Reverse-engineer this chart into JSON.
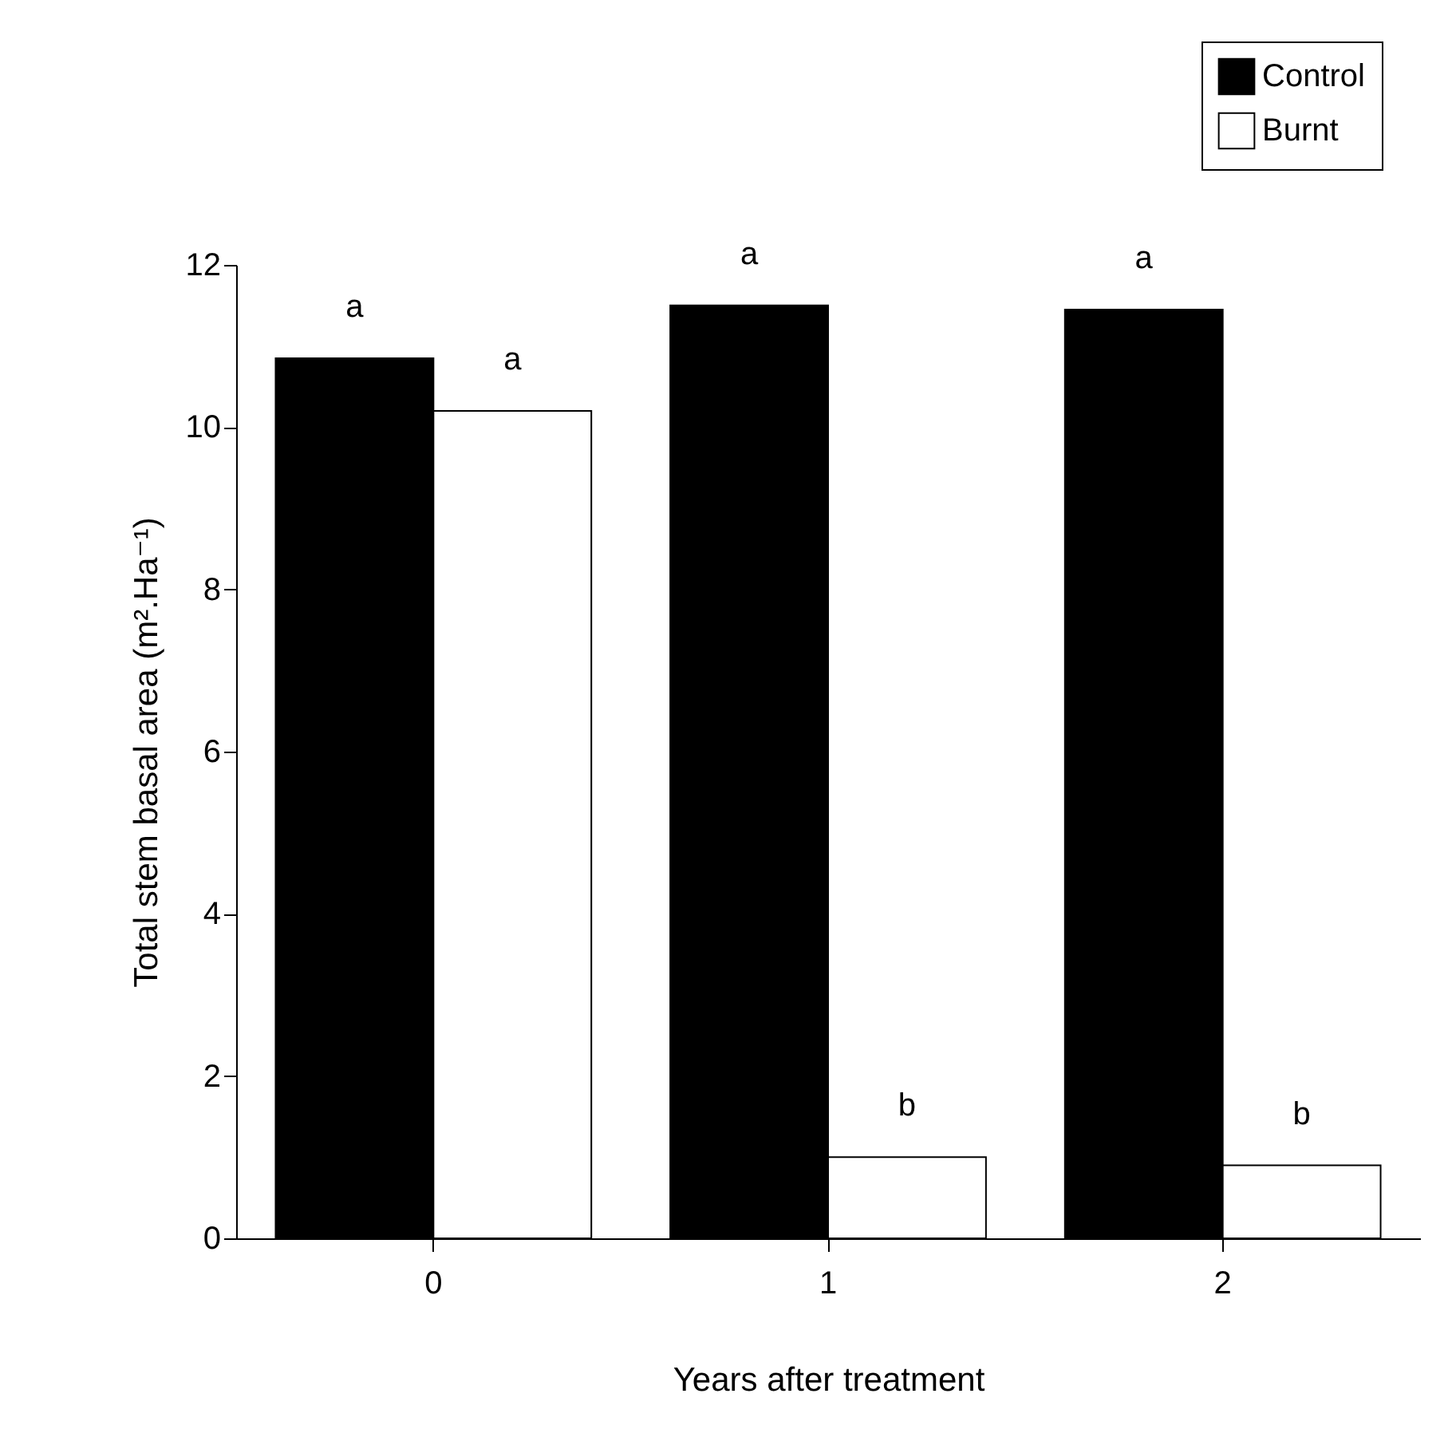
{
  "chart_data": {
    "type": "bar",
    "xlabel": "Years after treatment",
    "ylabel": "Total stem basal area (m².Ha⁻¹)",
    "categories": [
      "0",
      "1",
      "2"
    ],
    "series": [
      {
        "name": "Control",
        "color": "#000000",
        "values": [
          10.85,
          11.5,
          11.45
        ]
      },
      {
        "name": "Burnt",
        "color": "#ffffff",
        "values": [
          10.2,
          1.0,
          0.9
        ]
      }
    ],
    "ylim": [
      0,
      12
    ],
    "yticks": [
      0,
      2,
      4,
      6,
      8,
      10,
      12
    ],
    "grid": false,
    "legend": "top right",
    "annotations": [
      {
        "text": "a",
        "x": "0",
        "y": 10.85
      },
      {
        "text": "a",
        "x": "0",
        "y": 10.2
      },
      {
        "text": "a",
        "x": "1",
        "y": 11.5
      },
      {
        "text": "b",
        "x": "1",
        "y": 1.0
      },
      {
        "text": "a",
        "x": "2",
        "y": 11.45
      },
      {
        "text": "b",
        "x": "2",
        "y": 0.9
      }
    ]
  }
}
